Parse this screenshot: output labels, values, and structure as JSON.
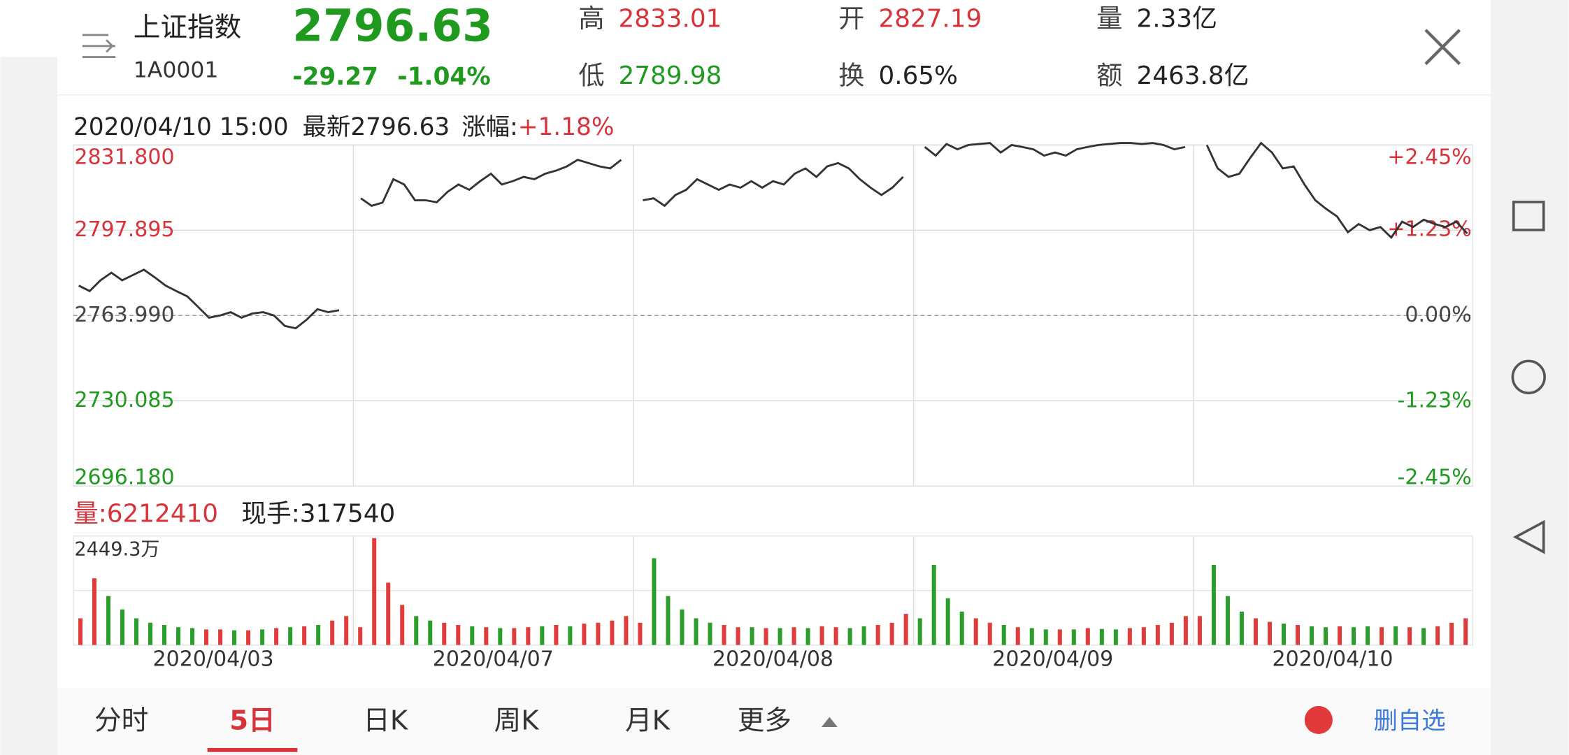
{
  "header": {
    "name": "上证指数",
    "code": "1A0001",
    "price": "2796.63",
    "change": "-29.27",
    "change_pct": "-1.04%",
    "stats": [
      {
        "label": "高",
        "value": "2833.01",
        "color": "#d8323a"
      },
      {
        "label": "开",
        "value": "2827.19",
        "color": "#d8323a"
      },
      {
        "label": "量",
        "value": "2.33亿",
        "color": "#222222"
      },
      {
        "label": "低",
        "value": "2789.98",
        "color": "#1f9a1f"
      },
      {
        "label": "换",
        "value": "0.65%",
        "color": "#222222"
      },
      {
        "label": "额",
        "value": "2463.8亿",
        "color": "#222222"
      }
    ]
  },
  "chart_data": [
    {
      "type": "line",
      "time": "2020/04/10 15:00",
      "latest": "最新2796.63",
      "change_label": "涨幅:",
      "change": "+1.18%",
      "color": "#333333",
      "grid": true,
      "ylim": [
        2696.18,
        2831.8
      ],
      "yticks": [
        {
          "value": 2831.8,
          "label": "2831.800"
        },
        {
          "value": 2797.895,
          "label": "2797.895"
        },
        {
          "value": 2763.99,
          "label": "2763.990"
        },
        {
          "value": 2730.085,
          "label": "2730.085"
        },
        {
          "value": 2696.18,
          "label": "2696.180"
        }
      ],
      "y2lim": [
        -2.45,
        2.45
      ],
      "y2ticks": [
        {
          "value": 2.45,
          "label": "+2.45%"
        },
        {
          "value": 1.23,
          "label": "+1.23%"
        },
        {
          "value": 0,
          "label": "0.00%"
        },
        {
          "value": -1.23,
          "label": "-1.23%"
        },
        {
          "value": -2.45,
          "label": "-2.45%"
        }
      ],
      "values": [
        2775.9,
        2773.7,
        2778.0,
        2781.0,
        2778.0,
        2780.1,
        2782.2,
        2779.2,
        2775.9,
        2773.7,
        2771.6,
        2767.4,
        2763.1,
        2764.0,
        2765.3,
        2763.1,
        2764.8,
        2765.3,
        2764.0,
        2759.8,
        2758.9,
        2762.3,
        2766.5,
        2765.3,
        2766.1,
        null,
        2810.6,
        2807.6,
        2808.9,
        2818.2,
        2816.1,
        2809.8,
        2809.8,
        2809.0,
        2813.2,
        2816.1,
        2814.0,
        2817.4,
        2820.4,
        2816.1,
        2817.4,
        2819.1,
        2818.2,
        2820.4,
        2821.6,
        2823.3,
        2825.9,
        2824.6,
        2823.3,
        2822.5,
        2825.9,
        null,
        2809.8,
        2810.6,
        2807.6,
        2811.9,
        2814.0,
        2818.2,
        2816.1,
        2814.0,
        2816.1,
        2814.8,
        2817.4,
        2814.8,
        2817.4,
        2816.1,
        2820.4,
        2822.5,
        2819.1,
        2823.3,
        2824.6,
        2822.5,
        2818.2,
        2814.8,
        2811.9,
        2814.8,
        2819.1,
        null,
        2831.0,
        2827.6,
        2832.2,
        2830.1,
        2831.8,
        2832.2,
        2832.6,
        2828.8,
        2831.8,
        2831.0,
        2830.1,
        2827.6,
        2828.8,
        2827.6,
        2830.1,
        2831.0,
        2831.8,
        2832.2,
        2832.6,
        2832.6,
        2832.2,
        2832.6,
        2831.8,
        2830.1,
        2831.0,
        null,
        2831.8,
        2822.5,
        2819.1,
        2820.4,
        2826.7,
        2832.6,
        2828.8,
        2822.5,
        2823.3,
        2816.1,
        2809.8,
        2806.4,
        2803.4,
        2797.1,
        2800.4,
        2797.9,
        2799.2,
        2795.0,
        2801.3,
        2799.2,
        2802.1,
        2800.4,
        2799.2,
        2801.3,
        2796.6
      ]
    },
    {
      "type": "bar",
      "title": "量:6212410",
      "subtitle": "现手:317540",
      "day_labels": [
        "2020/04/03",
        "2020/04/07",
        "2020/04/08",
        "2020/04/09",
        "2020/04/10"
      ],
      "ylim": [
        0,
        2449.3
      ],
      "yticks": [
        {
          "value": 2449.3,
          "label": "2449.3万"
        }
      ],
      "values": [
        600,
        1500,
        1100,
        800,
        600,
        500,
        450,
        400,
        380,
        350,
        350,
        330,
        330,
        350,
        380,
        400,
        420,
        450,
        550,
        650,
        400,
        2400,
        1400,
        900,
        650,
        550,
        500,
        450,
        420,
        400,
        380,
        380,
        400,
        420,
        450,
        420,
        480,
        500,
        550,
        650,
        500,
        1950,
        1100,
        800,
        600,
        500,
        450,
        400,
        400,
        380,
        380,
        400,
        380,
        420,
        400,
        380,
        420,
        450,
        500,
        700,
        600,
        1800,
        1050,
        750,
        600,
        500,
        450,
        400,
        380,
        350,
        350,
        350,
        380,
        360,
        350,
        380,
        400,
        450,
        500,
        650,
        650,
        1800,
        1100,
        750,
        600,
        520,
        480,
        450,
        420,
        400,
        420,
        400,
        420,
        400,
        420,
        400,
        380,
        420,
        500,
        600
      ],
      "colors": [
        "#e03c3c",
        "#e03c3c",
        "#2a9d2a",
        "#2a9d2a",
        "#2a9d2a",
        "#2a9d2a",
        "#2a9d2a",
        "#2a9d2a",
        "#2a9d2a",
        "#e03c3c",
        "#e03c3c",
        "#2a9d2a",
        "#e03c3c",
        "#2a9d2a",
        "#e03c3c",
        "#2a9d2a",
        "#e03c3c",
        "#2a9d2a",
        "#e03c3c",
        "#e03c3c",
        "#e03c3c",
        "#e03c3c",
        "#e03c3c",
        "#e03c3c",
        "#2a9d2a",
        "#2a9d2a",
        "#e03c3c",
        "#e03c3c",
        "#2a9d2a",
        "#e03c3c",
        "#2a9d2a",
        "#e03c3c",
        "#e03c3c",
        "#2a9d2a",
        "#e03c3c",
        "#2a9d2a",
        "#e03c3c",
        "#e03c3c",
        "#e03c3c",
        "#e03c3c",
        "#e03c3c",
        "#2a9d2a",
        "#2a9d2a",
        "#2a9d2a",
        "#2a9d2a",
        "#2a9d2a",
        "#e03c3c",
        "#e03c3c",
        "#2a9d2a",
        "#e03c3c",
        "#2a9d2a",
        "#e03c3c",
        "#2a9d2a",
        "#e03c3c",
        "#e03c3c",
        "#2a9d2a",
        "#2a9d2a",
        "#e03c3c",
        "#e03c3c",
        "#e03c3c",
        "#2a9d2a",
        "#2a9d2a",
        "#2a9d2a",
        "#2a9d2a",
        "#e03c3c",
        "#e03c3c",
        "#2a9d2a",
        "#e03c3c",
        "#2a9d2a",
        "#2a9d2a",
        "#e03c3c",
        "#2a9d2a",
        "#e03c3c",
        "#2a9d2a",
        "#2a9d2a",
        "#e03c3c",
        "#e03c3c",
        "#e03c3c",
        "#e03c3c",
        "#e03c3c",
        "#e03c3c",
        "#2a9d2a",
        "#2a9d2a",
        "#2a9d2a",
        "#e03c3c",
        "#e03c3c",
        "#2a9d2a",
        "#e03c3c",
        "#2a9d2a",
        "#2a9d2a",
        "#e03c3c",
        "#2a9d2a",
        "#2a9d2a",
        "#e03c3c",
        "#2a9d2a",
        "#e03c3c",
        "#2a9d2a",
        "#e03c3c",
        "#e03c3c",
        "#e03c3c"
      ]
    }
  ],
  "tabs": {
    "items": [
      "分时",
      "5日",
      "日K",
      "周K",
      "月K",
      "更多"
    ],
    "selected": 1
  },
  "button": "删自选"
}
